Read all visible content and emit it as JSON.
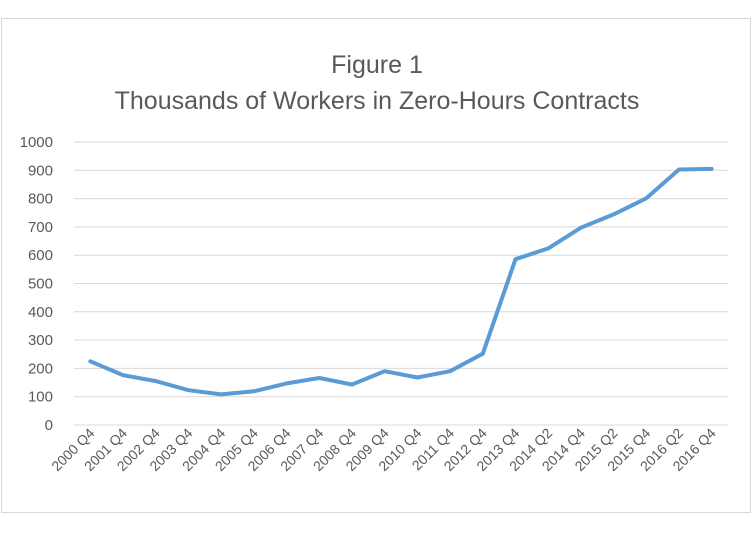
{
  "chart_data": {
    "type": "line",
    "title": "Figure 1",
    "subtitle": "Thousands of Workers in Zero-Hours Contracts",
    "xlabel": "",
    "ylabel": "",
    "ylim": [
      0,
      1000
    ],
    "yticks": [
      "0",
      "100",
      "200",
      "300",
      "400",
      "500",
      "600",
      "700",
      "800",
      "900",
      "1000"
    ],
    "grid": true,
    "legend": "none",
    "line_color": "#5b9bd5",
    "grid_color": "#d9d9d9",
    "categories": [
      "2000 Q4",
      "2001 Q4",
      "2002 Q4",
      "2003 Q4",
      "2004 Q4",
      "2005 Q4",
      "2006 Q4",
      "2007 Q4",
      "2008 Q4",
      "2009 Q4",
      "2010 Q4",
      "2011 Q4",
      "2012 Q4",
      "2013 Q4",
      "2014 Q2",
      "2014 Q4",
      "2015 Q2",
      "2015 Q4",
      "2016 Q2",
      "2016 Q4"
    ],
    "series": [
      {
        "values": [
          225,
          176,
          155,
          123,
          108,
          119,
          147,
          166,
          143,
          190,
          168,
          190,
          252,
          586,
          624,
          697,
          744,
          801,
          903,
          905
        ]
      }
    ]
  }
}
